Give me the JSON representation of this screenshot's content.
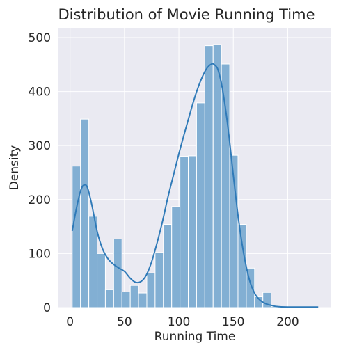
{
  "chart_data": {
    "type": "histogram",
    "title": "Distribution of Movie Running Time",
    "xlabel": "Running Time",
    "ylabel": "Density",
    "xlim": [
      -11.3,
      240.0
    ],
    "ylim": [
      0,
      518
    ],
    "grid": true,
    "legend": "none",
    "x_ticks": [
      0,
      50,
      100,
      150,
      200
    ],
    "y_ticks": [
      0,
      100,
      200,
      300,
      400,
      500
    ],
    "bin_width": 7.615,
    "bins_start": 2.0,
    "counts": [
      262,
      349,
      169,
      100,
      33,
      127,
      29,
      41,
      27,
      64,
      102,
      154,
      187,
      280,
      281,
      379,
      485,
      487,
      451,
      282,
      154,
      73,
      20,
      28,
      2,
      0,
      0,
      0,
      0,
      0
    ],
    "kde": {
      "x": [
        2,
        6,
        10,
        13,
        16,
        20,
        25,
        30,
        35,
        40,
        45,
        50,
        55,
        60,
        65,
        70,
        75,
        80,
        85,
        90,
        95,
        100,
        105,
        110,
        115,
        120,
        125,
        130,
        133,
        136,
        140,
        145,
        150,
        155,
        160,
        165,
        170,
        175,
        180,
        185,
        190,
        200,
        210,
        220,
        228
      ],
      "y": [
        142,
        185,
        218,
        227,
        222,
        190,
        140,
        108,
        90,
        80,
        73,
        67,
        55,
        47,
        48,
        60,
        85,
        120,
        160,
        205,
        245,
        285,
        322,
        358,
        392,
        420,
        441,
        451,
        449,
        440,
        405,
        335,
        245,
        160,
        95,
        50,
        25,
        13,
        7,
        4,
        2,
        1,
        1,
        1,
        1
      ]
    },
    "colors": {
      "background": "#eaeaf2",
      "grid": "#ffffff",
      "bar_fill": "#82afd3",
      "bar_edge": "#ffffff",
      "kde_line": "#2f7ab8",
      "text": "#262626"
    }
  }
}
